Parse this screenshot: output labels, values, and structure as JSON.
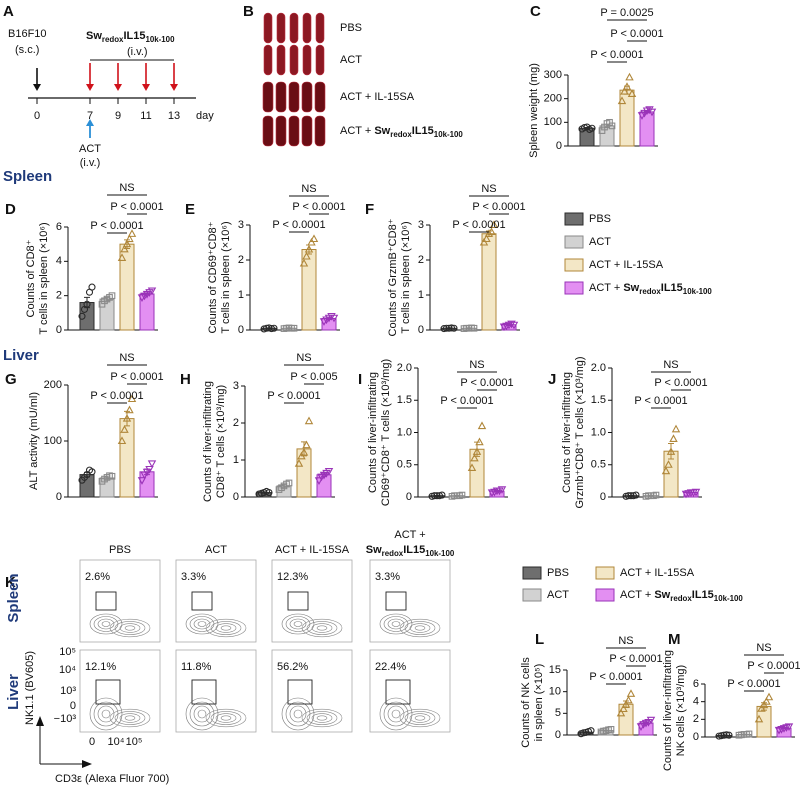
{
  "schedule": {
    "panel": "A",
    "tumor": "B16F10",
    "tumor_route": "(s.c.)",
    "drug": [
      {
        "text": "Sw",
        "style": "bold"
      },
      {
        "text": "redox",
        "style": "bold-sub"
      },
      {
        "text": "IL15",
        "style": "bold"
      },
      {
        "text": "10k-100",
        "style": "bold-sub"
      }
    ],
    "drug_route": "(i.v.)",
    "days": [
      0,
      7,
      9,
      11,
      13
    ],
    "day_unit": "day",
    "act": "ACT",
    "act_route": "(i.v.)"
  },
  "images": {
    "panel": "B",
    "rows": [
      [
        {
          "text": "PBS"
        }
      ],
      [
        {
          "text": "ACT"
        }
      ],
      [
        {
          "text": "ACT + IL-15SA"
        }
      ],
      [
        {
          "text": "ACT + "
        },
        {
          "text": "Sw",
          "style": "bold"
        },
        {
          "text": "redox",
          "style": "bold-sub"
        },
        {
          "text": "IL15",
          "style": "bold"
        },
        {
          "text": "10k-100",
          "style": "bold-sub"
        }
      ]
    ]
  },
  "sections": [
    "Spleen",
    "Liver"
  ],
  "groups": [
    {
      "name": [
        {
          "text": "PBS"
        }
      ],
      "color": "#6e6e6e",
      "edge": "#2b2b2b",
      "marker": "circle"
    },
    {
      "name": [
        {
          "text": "ACT"
        }
      ],
      "color": "#d2d2d2",
      "edge": "#8a8a8a",
      "marker": "square"
    },
    {
      "name": [
        {
          "text": "ACT + IL-15SA"
        }
      ],
      "color": "#f3e7c6",
      "edge": "#b0873a",
      "marker": "triangle-up"
    },
    {
      "name": [
        {
          "text": "ACT + "
        },
        {
          "text": "Sw",
          "style": "bold"
        },
        {
          "text": "redox",
          "style": "bold-sub"
        },
        {
          "text": "IL15",
          "style": "bold"
        },
        {
          "text": "10k-100",
          "style": "bold-sub"
        }
      ],
      "color": "#e38ff2",
      "edge": "#9a33b8",
      "marker": "triangle-down"
    }
  ],
  "chart_data": [
    {
      "type": "bar",
      "panel": "C",
      "ylabel": [
        "Spleen weight (mg)"
      ],
      "ylim": [
        0,
        300
      ],
      "yticks": [
        0,
        100,
        200,
        300
      ],
      "values": [
        75,
        85,
        236,
        144
      ],
      "errors": [
        3,
        7,
        17,
        4
      ],
      "points": [
        [
          72,
          78,
          80,
          70,
          75
        ],
        [
          65,
          80,
          95,
          100,
          85
        ],
        [
          190,
          230,
          250,
          290,
          220
        ],
        [
          130,
          140,
          150,
          155,
          145
        ]
      ],
      "annotations": [
        "P = 0.0025",
        "P < 0.0001",
        "P < 0.0001"
      ]
    },
    {
      "type": "bar",
      "panel": "D",
      "ylabel": [
        "Counts of CD8⁺",
        "T cells in spleen (×10⁶)"
      ],
      "ylim": [
        0,
        6
      ],
      "yticks": [
        0,
        2,
        4,
        6
      ],
      "values": [
        1.6,
        1.8,
        5.0,
        2.1
      ],
      "errors": [
        0.3,
        0.1,
        0.25,
        0.07
      ],
      "points": [
        [
          0.8,
          1.2,
          1.5,
          2.2,
          2.5
        ],
        [
          1.5,
          1.7,
          1.8,
          1.9,
          2.0
        ],
        [
          4.2,
          4.7,
          5.0,
          5.3,
          5.6
        ],
        [
          1.9,
          2.0,
          2.1,
          2.2,
          2.3
        ]
      ],
      "annotations": [
        "NS",
        "P < 0.0001",
        "P < 0.0001"
      ]
    },
    {
      "type": "bar",
      "panel": "E",
      "ylabel": [
        "Counts of CD69⁺CD8⁺",
        "T cells in spleen (×10⁶)"
      ],
      "ylim": [
        0,
        3
      ],
      "yticks": [
        0,
        1,
        2,
        3
      ],
      "values": [
        0.05,
        0.05,
        2.3,
        0.33
      ],
      "errors": [
        0.01,
        0.01,
        0.13,
        0.03
      ],
      "points": [
        [
          0.03,
          0.05,
          0.06,
          0.04,
          0.05
        ],
        [
          0.04,
          0.05,
          0.06,
          0.05,
          0.05
        ],
        [
          1.9,
          2.1,
          2.3,
          2.5,
          2.6
        ],
        [
          0.25,
          0.3,
          0.35,
          0.4,
          0.35
        ]
      ],
      "annotations": [
        "NS",
        "P < 0.0001",
        "P < 0.0001"
      ]
    },
    {
      "type": "bar",
      "panel": "F",
      "ylabel": [
        "Counts of GrzmB⁺CD8⁺",
        "T cells in spleen (×10⁶)"
      ],
      "ylim": [
        0,
        3
      ],
      "yticks": [
        0,
        1,
        2,
        3
      ],
      "values": [
        0.05,
        0.05,
        2.75,
        0.15
      ],
      "errors": [
        0.01,
        0.01,
        0.08,
        0.02
      ],
      "points": [
        [
          0.04,
          0.05,
          0.05,
          0.06,
          0.05
        ],
        [
          0.04,
          0.05,
          0.05,
          0.06,
          0.05
        ],
        [
          2.5,
          2.6,
          2.75,
          2.8,
          3.0
        ],
        [
          0.1,
          0.12,
          0.15,
          0.18,
          0.15
        ]
      ],
      "annotations": [
        "NS",
        "P < 0.0001",
        "P < 0.0001"
      ]
    },
    {
      "type": "bar",
      "panel": "G",
      "ylabel": [
        "ALT activity (mU/ml)"
      ],
      "ylim": [
        0,
        200
      ],
      "yticks": [
        0,
        100,
        200
      ],
      "values": [
        40,
        34,
        140,
        45
      ],
      "errors": [
        4,
        2,
        13,
        5
      ],
      "points": [
        [
          30,
          35,
          40,
          48,
          45
        ],
        [
          28,
          32,
          35,
          38,
          37
        ],
        [
          100,
          120,
          140,
          155,
          175
        ],
        [
          30,
          40,
          45,
          50,
          60
        ]
      ],
      "annotations": [
        "NS",
        "P < 0.0001",
        "P < 0.0001"
      ]
    },
    {
      "type": "bar",
      "panel": "H",
      "ylabel": [
        "Counts of liver-infiltrating",
        "CD8⁺ T cells (×10³/mg)"
      ],
      "ylim": [
        0,
        3
      ],
      "yticks": [
        0,
        1,
        2,
        3
      ],
      "values": [
        0.12,
        0.3,
        1.3,
        0.6
      ],
      "errors": [
        0.02,
        0.04,
        0.19,
        0.05
      ],
      "points": [
        [
          0.08,
          0.1,
          0.12,
          0.15,
          0.12
        ],
        [
          0.2,
          0.25,
          0.3,
          0.35,
          0.38
        ],
        [
          0.9,
          1.1,
          1.2,
          1.4,
          2.05
        ],
        [
          0.45,
          0.55,
          0.6,
          0.65,
          0.7
        ]
      ],
      "annotations": [
        "NS",
        "P < 0.005",
        "P < 0.0001"
      ]
    },
    {
      "type": "bar",
      "panel": "I",
      "ylabel": [
        "Counts of liver-infiltrating",
        "CD69⁺CD8⁺ T cells (×10³/mg)"
      ],
      "ylim": [
        0,
        2
      ],
      "yticks": [
        0,
        0.5,
        {
          "value": 1,
          "label": "1.0"
        },
        1.5,
        {
          "value": 2,
          "label": "2.0"
        }
      ],
      "values": [
        0.02,
        0.02,
        0.74,
        0.09
      ],
      "errors": [
        0.003,
        0.003,
        0.11,
        0.01
      ],
      "points": [
        [
          0.01,
          0.02,
          0.02,
          0.02,
          0.03
        ],
        [
          0.01,
          0.02,
          0.02,
          0.02,
          0.03
        ],
        [
          0.45,
          0.6,
          0.7,
          0.85,
          1.1
        ],
        [
          0.07,
          0.08,
          0.1,
          0.1,
          0.12
        ]
      ],
      "annotations": [
        "NS",
        "P < 0.0001",
        "P < 0.0001"
      ]
    },
    {
      "type": "bar",
      "panel": "J",
      "ylabel": [
        "Counts of liver-infiltrating",
        "Grzmb⁺CD8⁺ T cells (×10³/mg)"
      ],
      "ylim": [
        0,
        2
      ],
      "yticks": [
        0,
        0.5,
        {
          "value": 1,
          "label": "1.0"
        },
        1.5,
        {
          "value": 2,
          "label": "2.0"
        }
      ],
      "values": [
        0.02,
        0.02,
        0.71,
        0.07
      ],
      "errors": [
        0.003,
        0.003,
        0.12,
        0.005
      ],
      "points": [
        [
          0.01,
          0.02,
          0.02,
          0.02,
          0.03
        ],
        [
          0.01,
          0.02,
          0.02,
          0.02,
          0.03
        ],
        [
          0.4,
          0.5,
          0.7,
          0.9,
          1.05
        ],
        [
          0.05,
          0.06,
          0.07,
          0.07,
          0.08
        ]
      ],
      "annotations": [
        "NS",
        "P < 0.0001",
        "P < 0.0001"
      ]
    },
    {
      "type": "bar",
      "panel": "L",
      "ylabel": [
        "Counts of NK cells",
        "in spleen (×10⁵)"
      ],
      "ylim": [
        0,
        15
      ],
      "yticks": [
        0,
        5,
        10,
        15
      ],
      "values": [
        0.64,
        1.02,
        7.1,
        2.76
      ],
      "errors": [
        0.12,
        0.11,
        0.75,
        0.25
      ],
      "points": [
        [
          0.3,
          0.5,
          0.6,
          0.8,
          1.0
        ],
        [
          0.7,
          0.9,
          1.0,
          1.2,
          1.3
        ],
        [
          5,
          6,
          7,
          8,
          9.5
        ],
        [
          2,
          2.5,
          2.8,
          3,
          3.5
        ]
      ],
      "annotations": [
        "NS",
        "P < 0.0001",
        "P < 0.0001"
      ]
    },
    {
      "type": "bar",
      "panel": "M",
      "ylabel": [
        "Counts of liver-infiltrating",
        "NK cells (×10³/mg)"
      ],
      "ylim": [
        0,
        6
      ],
      "yticks": [
        0,
        2,
        4,
        6
      ],
      "values": [
        0.18,
        0.28,
        3.46,
        1.0
      ],
      "errors": [
        0.03,
        0.03,
        0.42,
        0.07
      ],
      "points": [
        [
          0.1,
          0.15,
          0.2,
          0.25,
          0.2
        ],
        [
          0.2,
          0.25,
          0.3,
          0.3,
          0.35
        ],
        [
          2,
          3.2,
          3.6,
          4,
          4.5
        ],
        [
          0.8,
          0.9,
          1.0,
          1.1,
          1.2
        ]
      ],
      "annotations": [
        "NS",
        "P < 0.0001",
        "P < 0.0001"
      ]
    }
  ],
  "flow": {
    "panel": "K",
    "columns": [
      [
        [
          {
            "text": "PBS"
          }
        ]
      ],
      [
        [
          {
            "text": "ACT"
          }
        ]
      ],
      [
        [
          {
            "text": "ACT + IL-15SA"
          }
        ]
      ],
      [
        [
          {
            "text": "ACT +"
          }
        ],
        [
          {
            "text": "Sw",
            "style": "bold"
          },
          {
            "text": "redox",
            "style": "bold-sub"
          },
          {
            "text": "IL15",
            "style": "bold"
          },
          {
            "text": "10k-100",
            "style": "bold-sub"
          }
        ]
      ]
    ],
    "rows": [
      "Spleen",
      "Liver"
    ],
    "percents": [
      [
        "2.6%",
        "3.3%",
        "12.3%",
        "3.3%"
      ],
      [
        "12.1%",
        "11.8%",
        "56.2%",
        "22.4%"
      ]
    ],
    "ylabel": "NK1.1 (BV605)",
    "xlabel": "CD3ε (Alexa Fluor 700)",
    "yticks": [
      "10⁵",
      "10⁴",
      "10³",
      "0",
      "−10³"
    ],
    "xticks": [
      "0",
      "10⁴",
      "10⁵"
    ]
  }
}
